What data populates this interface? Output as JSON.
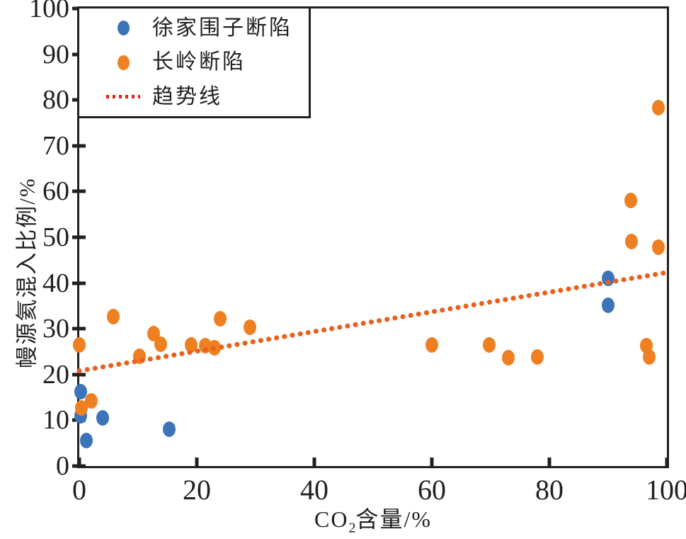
{
  "figure": {
    "background": "#ffffff",
    "frame_color": "#231f20",
    "x_axis_title": {
      "main": "CO",
      "sub": "2",
      "rest": "含量/%"
    },
    "y_axis_title": "幔源氦混入比例/%"
  },
  "legend": {
    "position": "upper-left",
    "items": [
      {
        "label": "徐家围子断陷",
        "marker": "dot",
        "color": "#3b74b8"
      },
      {
        "label": "长岭断陷",
        "marker": "dot",
        "color": "#ef8022"
      },
      {
        "label": "趋势线",
        "marker": "dotted-line",
        "color": "#e02315"
      }
    ]
  },
  "chart_data": {
    "type": "scatter",
    "title": "",
    "xlabel": "CO2含量/%",
    "ylabel": "幔源氦混入比例/%",
    "xlim": [
      0,
      100
    ],
    "ylim": [
      0,
      100
    ],
    "xticks": [
      0,
      20,
      40,
      60,
      80,
      100
    ],
    "yticks": [
      0,
      10,
      20,
      30,
      40,
      50,
      60,
      70,
      80,
      90,
      100
    ],
    "grid": false,
    "legend_position": "upper-left",
    "series": [
      {
        "name": "徐家围子断陷",
        "color": "#3b74b8",
        "points": [
          [
            0.2,
            16.3
          ],
          [
            0.2,
            11.0
          ],
          [
            1.2,
            5.5
          ],
          [
            4.0,
            10.5
          ],
          [
            15.3,
            8.0
          ],
          [
            90.0,
            41.0
          ],
          [
            90.0,
            35.2
          ]
        ]
      },
      {
        "name": "长岭断陷",
        "color": "#ef8022",
        "points": [
          [
            0.0,
            26.5
          ],
          [
            0.4,
            12.7
          ],
          [
            2.0,
            14.3
          ],
          [
            5.8,
            32.6
          ],
          [
            10.2,
            24.0
          ],
          [
            12.6,
            29.0
          ],
          [
            13.8,
            26.6
          ],
          [
            19.0,
            26.4
          ],
          [
            21.5,
            26.3
          ],
          [
            23.0,
            25.8
          ],
          [
            24.0,
            32.2
          ],
          [
            29.0,
            30.4
          ],
          [
            60.0,
            26.4
          ],
          [
            69.8,
            26.4
          ],
          [
            73.0,
            23.7
          ],
          [
            78.0,
            23.9
          ],
          [
            93.8,
            58.0
          ],
          [
            94.0,
            49.0
          ],
          [
            96.5,
            26.3
          ],
          [
            97.0,
            23.8
          ],
          [
            98.5,
            78.3
          ],
          [
            98.5,
            47.9
          ]
        ]
      }
    ],
    "trend_line": {
      "name": "趋势线",
      "color": "#e8601c",
      "style": "dotted",
      "start": [
        0,
        20.8
      ],
      "end": [
        100,
        42.3
      ]
    }
  }
}
